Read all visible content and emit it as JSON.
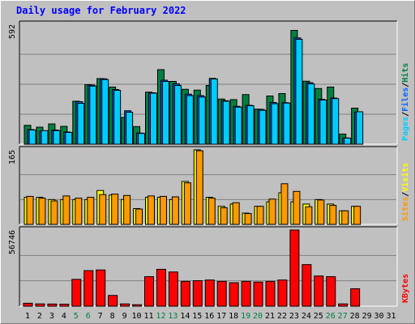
{
  "chart_data": {
    "type": "bar",
    "title": "Daily usage for February 2022",
    "categories": [
      "1",
      "2",
      "3",
      "4",
      "5",
      "6",
      "7",
      "8",
      "9",
      "10",
      "11",
      "12",
      "13",
      "14",
      "15",
      "16",
      "17",
      "18",
      "19",
      "20",
      "21",
      "22",
      "23",
      "24",
      "25",
      "26",
      "27",
      "28",
      "29",
      "30",
      "31"
    ],
    "weekend_days": [
      "5",
      "6",
      "12",
      "13",
      "19",
      "20",
      "26",
      "27"
    ],
    "panels": [
      {
        "name": "pages-files-hits",
        "max_label": "592",
        "ylim": [
          0,
          592
        ],
        "legend": [
          {
            "text": "Pages",
            "color": "#00ccff"
          },
          {
            "text": "Files",
            "color": "#0066ff"
          },
          {
            "text": "Hits",
            "color": "#008040"
          }
        ],
        "series": [
          {
            "name": "Hits",
            "color": "#008040",
            "values": [
              93,
              84,
              100,
              88,
              212,
              294,
              324,
              282,
              132,
              87,
              257,
              368,
              310,
              271,
              267,
              290,
              223,
              220,
              245,
              173,
              238,
              250,
              562,
              311,
              275,
              282,
              50,
              178
            ]
          },
          {
            "name": "Files",
            "color": "#0066ff",
            "values": [
              72,
              65,
              70,
              60,
              210,
              292,
              323,
              270,
              165,
              55,
              254,
              316,
              298,
              247,
              240,
              325,
              215,
              187,
              192,
              172,
              206,
              205,
              525,
              304,
              222,
              228,
              31,
              157
            ]
          },
          {
            "name": "Pages",
            "color": "#00ccff",
            "values": [
              70,
              67,
              67,
              58,
              202,
              287,
              319,
              266,
              158,
              53,
              252,
              310,
              290,
              240,
              233,
              322,
              212,
              183,
              190,
              167,
              200,
              203,
              518,
              298,
              218,
              225,
              30,
              160
            ]
          }
        ]
      },
      {
        "name": "visits-sites",
        "max_label": "165",
        "ylim": [
          0,
          165
        ],
        "legend": [
          {
            "text": "Sites",
            "color": "#ff9900"
          },
          {
            "text": "Visits",
            "color": "#ffff00"
          }
        ],
        "series": [
          {
            "name": "Visits",
            "color": "#ffff00",
            "values": [
              60,
              60,
              55,
              55,
              55,
              55,
              75,
              65,
              55,
              35,
              60,
              60,
              55,
              95,
              165,
              60,
              40,
              45,
              25,
              40,
              50,
              70,
              50,
              45,
              55,
              45,
              30,
              40
            ]
          },
          {
            "name": "Sites",
            "color": "#ff9900",
            "values": [
              62,
              58,
              52,
              63,
              58,
              60,
              66,
              67,
              64,
              34,
              63,
              62,
              61,
              92,
              163,
              58,
              37,
              48,
              24,
              40,
              56,
              90,
              73,
              39,
              54,
              42,
              30,
              40
            ]
          }
        ]
      },
      {
        "name": "kbytes",
        "max_label": "56746",
        "ylim": [
          0,
          56746
        ],
        "legend": [
          {
            "text": "KBytes",
            "color": "#ff0000"
          }
        ],
        "series": [
          {
            "name": "KBytes",
            "color": "#ff0000",
            "values": [
              2200,
              1700,
              1600,
              1500,
              20000,
              26500,
              27000,
              8000,
              1700,
              1100,
              22000,
              27500,
              25500,
              18500,
              19000,
              19500,
              18500,
              17500,
              18500,
              18000,
              18500,
              19500,
              56746,
              31000,
              22500,
              22000,
              1700,
              13000
            ]
          }
        ]
      }
    ]
  }
}
